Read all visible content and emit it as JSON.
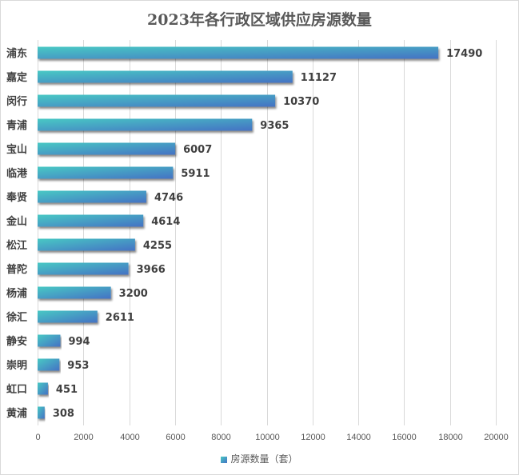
{
  "chart_data": {
    "type": "bar",
    "orientation": "horizontal",
    "title": "2023年各行政区域供应房源数量",
    "categories": [
      "浦东",
      "嘉定",
      "闵行",
      "青浦",
      "宝山",
      "临港",
      "奉贤",
      "金山",
      "松江",
      "普陀",
      "杨浦",
      "徐汇",
      "静安",
      "崇明",
      "虹口",
      "黄浦"
    ],
    "series": [
      {
        "name": "房源数量（套）",
        "values": [
          17490,
          11127,
          10370,
          9365,
          6007,
          5911,
          4746,
          4614,
          4255,
          3966,
          3200,
          2611,
          994,
          953,
          451,
          308
        ]
      }
    ],
    "xlabel": "",
    "ylabel": "",
    "xlim": [
      0,
      20000
    ],
    "xticks": [
      0,
      2000,
      4000,
      6000,
      8000,
      10000,
      12000,
      14000,
      16000,
      18000,
      20000
    ],
    "grid": true,
    "legend": "bottom",
    "data_labels": true,
    "colors": {
      "gradient_start": "#48c9c4",
      "gradient_end": "#4472c4"
    }
  }
}
